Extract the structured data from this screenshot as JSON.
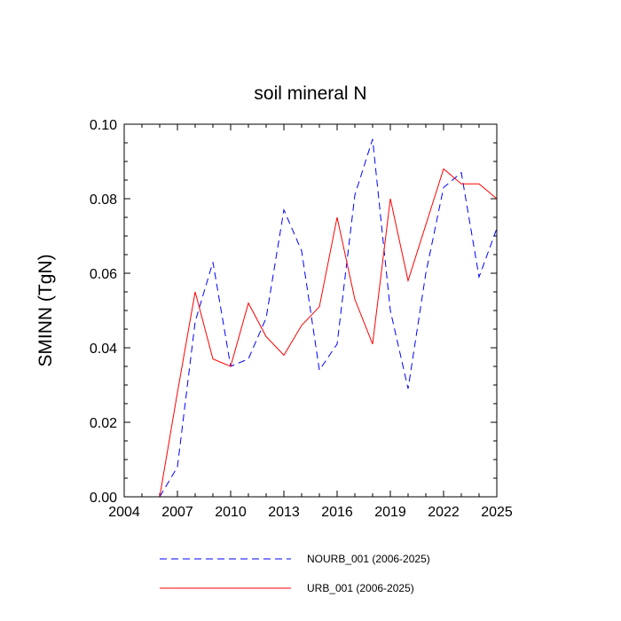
{
  "chart_data": {
    "type": "line",
    "title": "soil mineral N",
    "xlabel": "",
    "ylabel": "SMINN  (TgN)",
    "xlim": [
      2004,
      2025
    ],
    "ylim": [
      0.0,
      0.1
    ],
    "x_ticks": [
      "2004",
      "2007",
      "2010",
      "2013",
      "2016",
      "2019",
      "2022",
      "2025"
    ],
    "y_ticks": [
      "0.00",
      "0.02",
      "0.04",
      "0.06",
      "0.08",
      "0.10"
    ],
    "grid": false,
    "legend_position": "bottom",
    "x": [
      2006,
      2007,
      2008,
      2009,
      2010,
      2011,
      2012,
      2013,
      2014,
      2015,
      2016,
      2017,
      2018,
      2019,
      2020,
      2021,
      2022,
      2023,
      2024,
      2025
    ],
    "series": [
      {
        "name": "NOURB_001 (2006-2025)",
        "color": "#0000ff",
        "style": "dashed",
        "values": [
          0.0,
          0.008,
          0.047,
          0.063,
          0.035,
          0.037,
          0.048,
          0.077,
          0.066,
          0.034,
          0.041,
          0.081,
          0.096,
          0.05,
          0.029,
          0.06,
          0.083,
          0.087,
          0.059,
          0.072
        ]
      },
      {
        "name": "URB_001 (2006-2025)",
        "color": "#ff0000",
        "style": "solid",
        "values": [
          0.0,
          0.028,
          0.055,
          0.037,
          0.035,
          0.052,
          0.043,
          0.038,
          0.046,
          0.051,
          0.075,
          0.053,
          0.041,
          0.08,
          0.058,
          0.073,
          0.088,
          0.084,
          0.084,
          0.08
        ]
      }
    ]
  }
}
